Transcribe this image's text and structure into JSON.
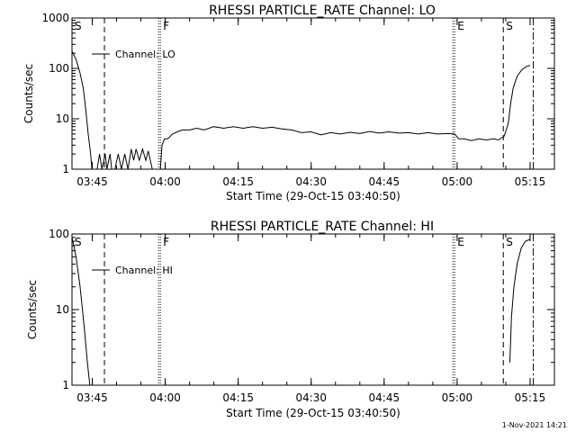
{
  "page": {
    "footer_timestamp": "1-Nov-2021 14:21"
  },
  "chart_data": [
    {
      "type": "line",
      "title": "RHESSI PARTICLE_RATE Channel: LO",
      "xlabel": "Start Time (29-Oct-15 03:40:50)",
      "ylabel": "Counts/sec",
      "yscale": "log",
      "ylim": [
        1,
        1000
      ],
      "xlim": [
        "03:40:50",
        "05:20:00"
      ],
      "x_ticks": [
        "03:45",
        "04:00",
        "04:15",
        "04:30",
        "04:45",
        "05:00",
        "05:15"
      ],
      "y_ticks": [
        "1",
        "10",
        "100",
        "1000"
      ],
      "grid": false,
      "legend": "top-left",
      "series": [
        {
          "name": "Channel: LO",
          "points": [
            [
              "03:40:50",
              220
            ],
            [
              "03:41:40",
              150
            ],
            [
              "03:42:30",
              80
            ],
            [
              "03:43:10",
              40
            ],
            [
              "03:43:40",
              15
            ],
            [
              "03:44:10",
              5
            ],
            [
              "03:44:40",
              2
            ],
            [
              "03:44:55",
              1
            ],
            [
              "03:46:00",
              1
            ],
            [
              "03:46:30",
              2
            ],
            [
              "03:47:00",
              1
            ],
            [
              "03:47:40",
              2
            ],
            [
              "03:48:00",
              1
            ],
            [
              "03:48:40",
              2
            ],
            [
              "03:49:00",
              1
            ],
            [
              "03:49:40",
              1
            ],
            [
              "03:50:20",
              2
            ],
            [
              "03:51:00",
              1
            ],
            [
              "03:51:40",
              2
            ],
            [
              "03:52:20",
              1
            ],
            [
              "03:53:00",
              2.5
            ],
            [
              "03:53:30",
              1.5
            ],
            [
              "03:54:00",
              2.5
            ],
            [
              "03:54:40",
              1.5
            ],
            [
              "03:55:20",
              2.5
            ],
            [
              "03:56:00",
              1.5
            ],
            [
              "03:56:30",
              2.3
            ],
            [
              "03:57:20",
              1
            ],
            [
              "03:59:00",
              1
            ],
            [
              "03:59:20",
              3
            ],
            [
              "03:59:50",
              4
            ],
            [
              "04:00:30",
              4
            ],
            [
              "04:01:30",
              5
            ],
            [
              "04:02:30",
              5.5
            ],
            [
              "04:03:30",
              6
            ],
            [
              "04:05:00",
              6
            ],
            [
              "04:06:30",
              6.5
            ],
            [
              "04:08:00",
              6
            ],
            [
              "04:10:00",
              7
            ],
            [
              "04:12:00",
              6.5
            ],
            [
              "04:14:00",
              7
            ],
            [
              "04:16:00",
              6.5
            ],
            [
              "04:18:00",
              7
            ],
            [
              "04:20:00",
              6.5
            ],
            [
              "04:22:00",
              6.8
            ],
            [
              "04:24:00",
              6.3
            ],
            [
              "04:26:00",
              6
            ],
            [
              "04:28:00",
              5.3
            ],
            [
              "04:30:00",
              5.5
            ],
            [
              "04:32:00",
              4.8
            ],
            [
              "04:34:00",
              5.3
            ],
            [
              "04:36:00",
              5
            ],
            [
              "04:38:00",
              5.4
            ],
            [
              "04:40:00",
              5.1
            ],
            [
              "04:42:00",
              5.6
            ],
            [
              "04:44:00",
              5.2
            ],
            [
              "04:46:00",
              5.5
            ],
            [
              "04:48:00",
              5.2
            ],
            [
              "04:50:00",
              5.3
            ],
            [
              "04:52:00",
              5
            ],
            [
              "04:54:00",
              5.3
            ],
            [
              "04:56:00",
              5
            ],
            [
              "04:58:00",
              5.1
            ],
            [
              "04:59:30",
              5
            ],
            [
              "05:00:20",
              4
            ],
            [
              "05:01:30",
              4
            ],
            [
              "05:03:00",
              3.7
            ],
            [
              "05:04:30",
              4
            ],
            [
              "05:06:00",
              3.8
            ],
            [
              "05:07:30",
              4
            ],
            [
              "05:08:30",
              3.8
            ],
            [
              "05:09:40",
              4.5
            ],
            [
              "05:10:30",
              8
            ],
            [
              "05:11:00",
              20
            ],
            [
              "05:11:30",
              40
            ],
            [
              "05:12:20",
              70
            ],
            [
              "05:13:20",
              95
            ],
            [
              "05:14:20",
              110
            ],
            [
              "05:15:00",
              115
            ]
          ]
        }
      ],
      "markers": [
        {
          "label": "S",
          "x": "03:40:50",
          "style": "dashed"
        },
        {
          "x": "03:47:30",
          "style": "dashed"
        },
        {
          "label": "F",
          "x": "03:59:00",
          "style": "dotted"
        },
        {
          "label": "E",
          "x": "04:59:30",
          "style": "dotted"
        },
        {
          "label": "S",
          "x": "05:09:30",
          "style": "dashed"
        },
        {
          "x": "05:15:40",
          "style": "dashdot"
        }
      ]
    },
    {
      "type": "line",
      "title": "RHESSI PARTICLE_RATE Channel: HI",
      "xlabel": "Start Time (29-Oct-15 03:40:50)",
      "ylabel": "Counts/sec",
      "yscale": "log",
      "ylim": [
        1,
        100
      ],
      "xlim": [
        "03:40:50",
        "05:20:00"
      ],
      "x_ticks": [
        "03:45",
        "04:00",
        "04:15",
        "04:30",
        "04:45",
        "05:00",
        "05:15"
      ],
      "y_ticks": [
        "1",
        "10",
        "100"
      ],
      "grid": false,
      "legend": "top-left",
      "series": [
        {
          "name": "Channel: HI",
          "points": [
            [
              "03:40:50",
              90
            ],
            [
              "03:41:40",
              50
            ],
            [
              "03:42:30",
              20
            ],
            [
              "03:43:20",
              6
            ],
            [
              "03:44:00",
              2
            ],
            [
              "03:44:30",
              1
            ]
          ]
        },
        {
          "name": "Channel: HI",
          "points": [
            [
              "05:10:50",
              2
            ],
            [
              "05:11:10",
              8
            ],
            [
              "05:11:40",
              20
            ],
            [
              "05:12:20",
              40
            ],
            [
              "05:13:10",
              65
            ],
            [
              "05:14:00",
              80
            ],
            [
              "05:15:00",
              85
            ]
          ]
        }
      ],
      "markers": [
        {
          "label": "S",
          "x": "03:40:50",
          "style": "dashed"
        },
        {
          "x": "03:47:30",
          "style": "dashed"
        },
        {
          "label": "F",
          "x": "03:59:00",
          "style": "dotted"
        },
        {
          "label": "E",
          "x": "04:59:30",
          "style": "dotted"
        },
        {
          "label": "S",
          "x": "05:09:30",
          "style": "dashed"
        },
        {
          "x": "05:15:40",
          "style": "dashdot"
        }
      ]
    }
  ]
}
